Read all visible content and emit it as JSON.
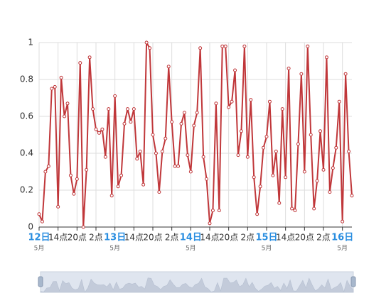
{
  "chart_data": {
    "type": "line",
    "color": "#c0373a",
    "grid": true,
    "x": [
      0,
      1,
      2,
      3,
      4,
      5,
      6,
      7,
      8,
      9,
      10,
      11,
      12,
      13,
      14,
      15,
      16,
      17,
      18,
      19,
      20,
      21,
      22,
      23,
      24,
      25,
      26,
      27,
      28,
      29,
      30,
      31,
      32,
      33,
      34,
      35,
      36,
      37,
      38,
      39,
      40,
      41,
      42,
      43,
      44,
      45,
      46,
      47,
      48,
      49,
      50,
      51,
      52,
      53,
      54,
      55,
      56,
      57,
      58,
      59,
      60,
      61,
      62,
      63,
      64,
      65,
      66,
      67,
      68,
      69,
      70,
      71,
      72,
      73,
      74,
      75,
      76,
      77,
      78,
      79,
      80,
      81,
      82,
      83,
      84,
      85,
      86,
      87,
      88,
      89,
      90,
      91,
      92,
      93,
      94,
      95,
      96,
      97,
      98,
      99
    ],
    "values": [
      0.07,
      0.03,
      0.3,
      0.33,
      0.75,
      0.76,
      0.11,
      0.81,
      0.6,
      0.67,
      0.28,
      0.18,
      0.26,
      0.89,
      0.0,
      0.31,
      0.92,
      0.64,
      0.53,
      0.51,
      0.53,
      0.38,
      0.64,
      0.17,
      0.71,
      0.22,
      0.28,
      0.56,
      0.64,
      0.57,
      0.64,
      0.37,
      0.41,
      0.23,
      1.0,
      0.97,
      0.5,
      0.4,
      0.19,
      0.41,
      0.48,
      0.87,
      0.57,
      0.33,
      0.33,
      0.56,
      0.62,
      0.39,
      0.3,
      0.55,
      0.62,
      0.97,
      0.38,
      0.26,
      0.02,
      0.09,
      0.67,
      0.09,
      0.98,
      0.98,
      0.65,
      0.68,
      0.85,
      0.39,
      0.52,
      0.98,
      0.38,
      0.69,
      0.27,
      0.07,
      0.22,
      0.43,
      0.49,
      0.68,
      0.28,
      0.41,
      0.13,
      0.64,
      0.27,
      0.86,
      0.1,
      0.09,
      0.45,
      0.83,
      0.3,
      0.98,
      0.5,
      0.1,
      0.25,
      0.52,
      0.31,
      0.92,
      0.19,
      0.32,
      0.43,
      0.68,
      0.03,
      0.83,
      0.41,
      0.17
    ],
    "xlim": [
      0,
      99
    ],
    "xticks": [
      {
        "value": 0,
        "label": "12日",
        "sublabel": "5月"
      },
      {
        "value": 6,
        "label": "14点"
      },
      {
        "value": 12,
        "label": "20点"
      },
      {
        "value": 18,
        "label": "2点"
      },
      {
        "value": 24,
        "label": "13日",
        "sublabel": "5月"
      },
      {
        "value": 30,
        "label": "14点"
      },
      {
        "value": 36,
        "label": "20点"
      },
      {
        "value": 42,
        "label": "2点"
      },
      {
        "value": 48,
        "label": "14日",
        "sublabel": "5月"
      },
      {
        "value": 54,
        "label": "14点"
      },
      {
        "value": 60,
        "label": "20点"
      },
      {
        "value": 66,
        "label": "2点"
      },
      {
        "value": 72,
        "label": "15日",
        "sublabel": "5月"
      },
      {
        "value": 78,
        "label": "14点"
      },
      {
        "value": 84,
        "label": "20点"
      },
      {
        "value": 90,
        "label": "2点"
      },
      {
        "value": 96,
        "label": "16日",
        "sublabel": "5月"
      }
    ],
    "ylim": [
      0,
      1
    ],
    "yticks": [
      0,
      0.2,
      0.4,
      0.6,
      0.8,
      1
    ]
  }
}
